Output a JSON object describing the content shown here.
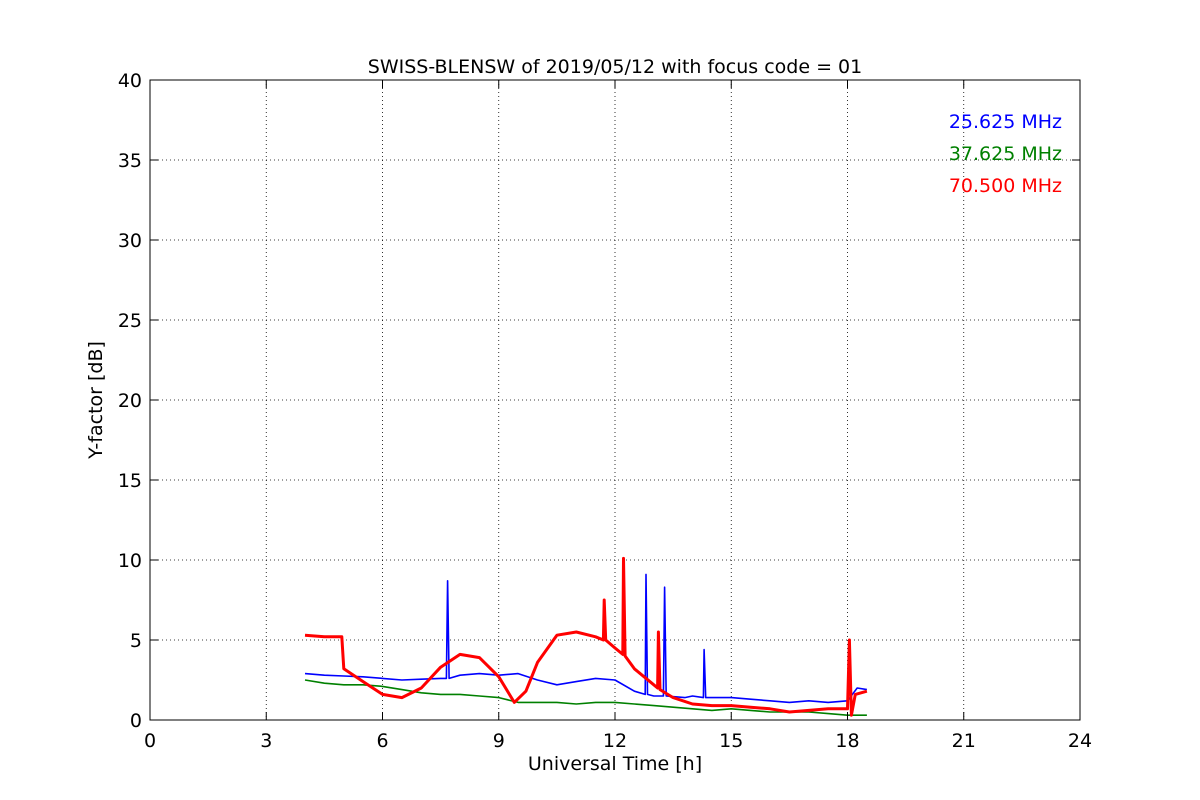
{
  "chart_data": {
    "type": "line",
    "title": "SWISS-BLENSW of 2019/05/12 with focus code = 01",
    "xlabel": "Universal Time [h]",
    "ylabel": "Y-factor [dB]",
    "xlim": [
      0,
      24
    ],
    "ylim": [
      0,
      40
    ],
    "xticks": [
      0,
      3,
      6,
      9,
      12,
      15,
      18,
      21,
      24
    ],
    "yticks": [
      0,
      5,
      10,
      15,
      20,
      25,
      30,
      35,
      40
    ],
    "grid": true,
    "legend_position": "top-right",
    "series": [
      {
        "name": "25.625 MHz",
        "color": "#0000ff",
        "points": [
          [
            4.0,
            2.9
          ],
          [
            4.5,
            2.8
          ],
          [
            5.0,
            2.75
          ],
          [
            5.5,
            2.7
          ],
          [
            6.0,
            2.6
          ],
          [
            6.5,
            2.5
          ],
          [
            7.0,
            2.55
          ],
          [
            7.5,
            2.6
          ],
          [
            7.65,
            2.6
          ],
          [
            7.68,
            8.7
          ],
          [
            7.72,
            2.6
          ],
          [
            8.0,
            2.8
          ],
          [
            8.5,
            2.9
          ],
          [
            9.0,
            2.8
          ],
          [
            9.5,
            2.9
          ],
          [
            10.0,
            2.5
          ],
          [
            10.5,
            2.2
          ],
          [
            11.0,
            2.4
          ],
          [
            11.5,
            2.6
          ],
          [
            12.0,
            2.5
          ],
          [
            12.5,
            1.8
          ],
          [
            12.78,
            1.6
          ],
          [
            12.8,
            9.1
          ],
          [
            12.84,
            1.6
          ],
          [
            13.0,
            1.5
          ],
          [
            13.25,
            1.5
          ],
          [
            13.28,
            8.3
          ],
          [
            13.32,
            1.5
          ],
          [
            13.8,
            1.4
          ],
          [
            14.0,
            1.5
          ],
          [
            14.28,
            1.4
          ],
          [
            14.3,
            4.4
          ],
          [
            14.34,
            1.4
          ],
          [
            15.0,
            1.4
          ],
          [
            15.5,
            1.3
          ],
          [
            16.0,
            1.2
          ],
          [
            16.5,
            1.1
          ],
          [
            17.0,
            1.2
          ],
          [
            17.5,
            1.1
          ],
          [
            18.0,
            1.2
          ],
          [
            18.25,
            2.0
          ],
          [
            18.5,
            1.9
          ]
        ]
      },
      {
        "name": "37.625 MHz",
        "color": "#008000",
        "points": [
          [
            4.0,
            2.5
          ],
          [
            4.5,
            2.3
          ],
          [
            5.0,
            2.2
          ],
          [
            5.5,
            2.2
          ],
          [
            6.0,
            2.1
          ],
          [
            6.5,
            1.9
          ],
          [
            7.0,
            1.7
          ],
          [
            7.5,
            1.6
          ],
          [
            8.0,
            1.6
          ],
          [
            8.5,
            1.5
          ],
          [
            9.0,
            1.4
          ],
          [
            9.5,
            1.1
          ],
          [
            10.0,
            1.1
          ],
          [
            10.5,
            1.1
          ],
          [
            11.0,
            1.0
          ],
          [
            11.5,
            1.1
          ],
          [
            12.0,
            1.1
          ],
          [
            12.5,
            1.0
          ],
          [
            13.0,
            0.9
          ],
          [
            13.5,
            0.8
          ],
          [
            14.0,
            0.7
          ],
          [
            14.5,
            0.6
          ],
          [
            15.0,
            0.7
          ],
          [
            15.5,
            0.6
          ],
          [
            16.0,
            0.5
          ],
          [
            16.5,
            0.5
          ],
          [
            17.0,
            0.5
          ],
          [
            17.5,
            0.4
          ],
          [
            18.0,
            0.3
          ],
          [
            18.5,
            0.3
          ]
        ]
      },
      {
        "name": "70.500 MHz",
        "color": "#ff0000",
        "points": [
          [
            4.0,
            5.3
          ],
          [
            4.5,
            5.2
          ],
          [
            4.95,
            5.2
          ],
          [
            5.0,
            3.2
          ],
          [
            5.5,
            2.4
          ],
          [
            6.0,
            1.6
          ],
          [
            6.5,
            1.4
          ],
          [
            7.0,
            2.0
          ],
          [
            7.5,
            3.3
          ],
          [
            8.0,
            4.1
          ],
          [
            8.5,
            3.9
          ],
          [
            9.0,
            2.7
          ],
          [
            9.4,
            1.1
          ],
          [
            9.7,
            1.8
          ],
          [
            10.0,
            3.6
          ],
          [
            10.5,
            5.3
          ],
          [
            11.0,
            5.5
          ],
          [
            11.5,
            5.2
          ],
          [
            11.7,
            5.0
          ],
          [
            11.72,
            7.5
          ],
          [
            11.76,
            5.0
          ],
          [
            12.0,
            4.5
          ],
          [
            12.2,
            4.1
          ],
          [
            12.22,
            10.1
          ],
          [
            12.26,
            4.0
          ],
          [
            12.5,
            3.2
          ],
          [
            13.0,
            2.2
          ],
          [
            13.1,
            2.0
          ],
          [
            13.12,
            5.5
          ],
          [
            13.16,
            1.9
          ],
          [
            13.5,
            1.4
          ],
          [
            14.0,
            1.0
          ],
          [
            14.5,
            0.9
          ],
          [
            15.0,
            0.9
          ],
          [
            15.5,
            0.8
          ],
          [
            16.0,
            0.7
          ],
          [
            16.5,
            0.5
          ],
          [
            17.0,
            0.6
          ],
          [
            17.5,
            0.7
          ],
          [
            18.0,
            0.7
          ],
          [
            18.05,
            5.0
          ],
          [
            18.1,
            0.3
          ],
          [
            18.2,
            1.6
          ],
          [
            18.5,
            1.8
          ]
        ]
      }
    ]
  }
}
